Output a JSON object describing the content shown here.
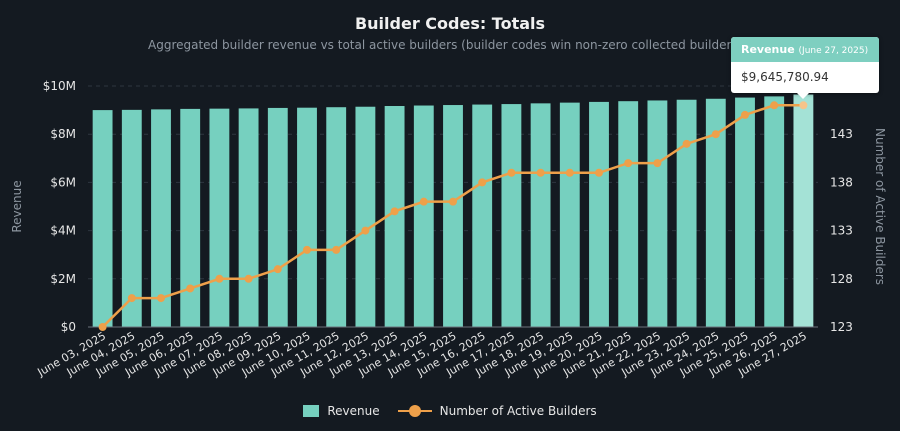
{
  "chart_data": {
    "type": "bar",
    "title": "Builder Codes: Totals",
    "subtitle": "Aggregated builder revenue vs total active builders (builder codes win non-zero collected builder fe",
    "categories": [
      "June 03, 2025",
      "June 04, 2025",
      "June 05, 2025",
      "June 06, 2025",
      "June 07, 2025",
      "June 08, 2025",
      "June 09, 2025",
      "June 10, 2025",
      "June 11, 2025",
      "June 12, 2025",
      "June 13, 2025",
      "June 14, 2025",
      "June 15, 2025",
      "June 16, 2025",
      "June 17, 2025",
      "June 18, 2025",
      "June 19, 2025",
      "June 20, 2025",
      "June 21, 2025",
      "June 22, 2025",
      "June 23, 2025",
      "June 24, 2025",
      "June 25, 2025",
      "June 26, 2025",
      "June 27, 2025"
    ],
    "series": [
      {
        "name": "Revenue",
        "type": "bar",
        "axis": "left",
        "color": "#76d0bf",
        "values": [
          9000000,
          9010000,
          9030000,
          9050000,
          9060000,
          9070000,
          9090000,
          9100000,
          9120000,
          9140000,
          9170000,
          9190000,
          9210000,
          9230000,
          9250000,
          9280000,
          9310000,
          9340000,
          9370000,
          9400000,
          9430000,
          9470000,
          9520000,
          9570000,
          9645780.94
        ]
      },
      {
        "name": "Number of Active Builders",
        "type": "line",
        "axis": "right",
        "color": "#eea04a",
        "values": [
          123,
          126,
          126,
          127,
          128,
          128,
          129,
          131,
          131,
          133,
          135,
          136,
          136,
          138,
          139,
          139,
          139,
          139,
          140,
          140,
          142,
          143,
          145,
          146,
          146
        ]
      }
    ],
    "ylabel": "Revenue",
    "ylim": [
      0,
      10000000
    ],
    "yticks": [
      "$0",
      "$2M",
      "$4M",
      "$6M",
      "$8M",
      "$10M"
    ],
    "y2label": "Number of Active Builders",
    "y2lim": [
      123,
      148
    ],
    "y2ticks": [
      "123",
      "128",
      "133",
      "138",
      "143"
    ],
    "grid": true,
    "legend": "bottom"
  },
  "tooltip": {
    "series": "Revenue",
    "date": "(June 27, 2025)",
    "value": "$9,645,780.94"
  },
  "colors": {
    "background": "#141a21",
    "bar": "#76d0bf",
    "bar_highlight": "#a4e2d6",
    "line": "#eea04a"
  }
}
